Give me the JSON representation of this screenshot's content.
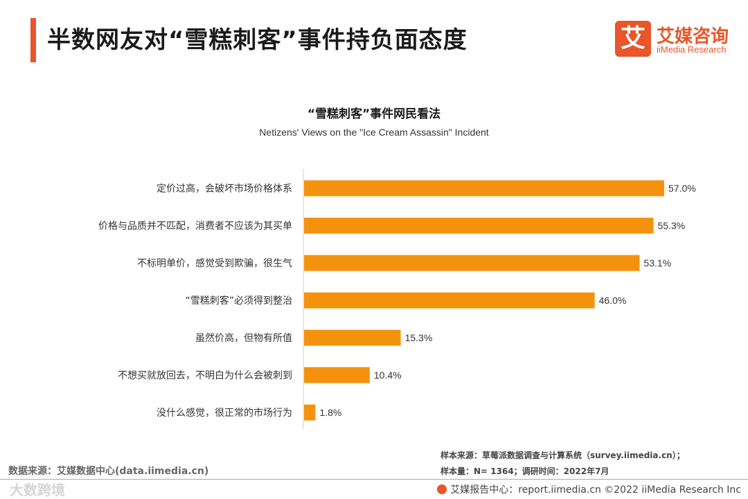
{
  "header": {
    "title": "半数网友对“雪糕刺客”事件持负面态度",
    "brand_cn": "艾媒咨询",
    "brand_en": "iiMedia Research",
    "brand_logo_char": "艾",
    "accent_color": "#e8562a"
  },
  "chart_data": {
    "type": "bar",
    "orientation": "horizontal",
    "title": "“雪糕刺客”事件网民看法",
    "subtitle": "Netizens' Views on the \"Ice Cream Assassin\" Incident",
    "categories": [
      "定价过高，会破坏市场价格体系",
      "价格与品质并不匹配，消费者不应该为其买单",
      "不标明单价，感觉受到欺骗，很生气",
      "“雪糕刺客”必须得到整治",
      "虽然价高，但物有所值",
      "不想买就放回去，不明白为什么会被刺到",
      "没什么感觉，很正常的市场行为"
    ],
    "values": [
      57.0,
      55.3,
      53.1,
      46.0,
      15.3,
      10.4,
      1.8
    ],
    "value_labels": [
      "57.0%",
      "55.3%",
      "53.1%",
      "46.0%",
      "15.3%",
      "10.4%",
      "1.8%"
    ],
    "unit": "%",
    "xlim": [
      0,
      57
    ],
    "bar_color": "#f5920d",
    "grid": false
  },
  "footer": {
    "data_source": "数据来源：艾媒数据中心(data.iimedia.cn)",
    "sample_source": "样本来源：草莓派数据调查与计算系统（survey.iimedia.cn）；",
    "sample_size": "样本量：N= 1364；调研时间：2022年7月",
    "report_center": "艾媒报告中心：report.iimedia.cn ©2022 iiMedia Research Inc",
    "watermark": "大数跨境"
  }
}
